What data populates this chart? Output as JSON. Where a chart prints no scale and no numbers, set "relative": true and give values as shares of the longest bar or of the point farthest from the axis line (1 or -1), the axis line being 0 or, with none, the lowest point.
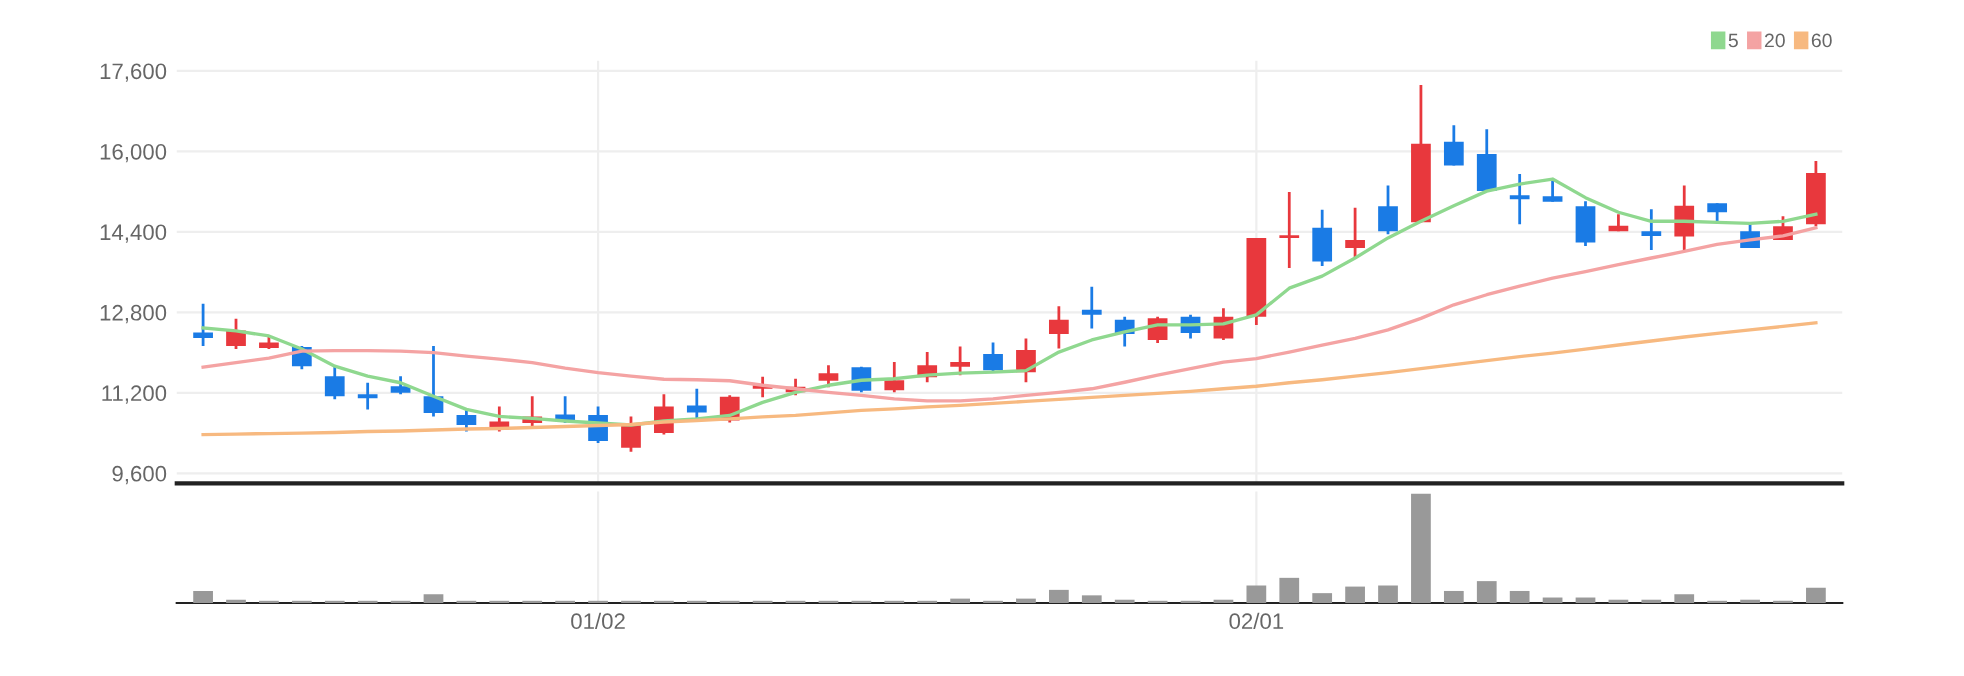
{
  "chart_data": [
    {
      "type": "candlestick",
      "ohlc": [
        [
          12400,
          12970,
          12130,
          12290
        ],
        [
          12130,
          12670,
          12070,
          12440
        ],
        [
          12090,
          12330,
          12070,
          12200
        ],
        [
          12110,
          12130,
          11670,
          11730
        ],
        [
          11530,
          11730,
          11070,
          11130
        ],
        [
          11170,
          11400,
          10870,
          11090
        ],
        [
          11330,
          11530,
          11170,
          11200
        ],
        [
          11130,
          12130,
          10730,
          10800
        ],
        [
          10760,
          10870,
          10430,
          10560
        ],
        [
          10470,
          10930,
          10430,
          10630
        ],
        [
          10600,
          11130,
          10530,
          10730
        ],
        [
          10770,
          11130,
          10600,
          10640
        ],
        [
          10760,
          10930,
          10200,
          10240
        ],
        [
          10110,
          10730,
          10030,
          10560
        ],
        [
          10400,
          11170,
          10370,
          10930
        ],
        [
          10950,
          11280,
          10650,
          10810
        ],
        [
          10650,
          11150,
          10610,
          11120
        ],
        [
          11280,
          11520,
          11110,
          11350
        ],
        [
          11210,
          11480,
          11150,
          11320
        ],
        [
          11440,
          11750,
          11310,
          11590
        ],
        [
          11710,
          11720,
          11210,
          11240
        ],
        [
          11250,
          11810,
          11210,
          11450
        ],
        [
          11510,
          12010,
          11410,
          11750
        ],
        [
          11720,
          12120,
          11550,
          11810
        ],
        [
          11970,
          12200,
          11610,
          11650
        ],
        [
          11610,
          12280,
          11410,
          12050
        ],
        [
          12370,
          12920,
          12080,
          12650
        ],
        [
          12850,
          13310,
          12480,
          12750
        ],
        [
          12650,
          12710,
          12120,
          12370
        ],
        [
          12250,
          12710,
          12190,
          12680
        ],
        [
          12710,
          12750,
          12280,
          12390
        ],
        [
          12280,
          12880,
          12250,
          12710
        ],
        [
          12710,
          14280,
          12550,
          14280
        ],
        [
          14280,
          15190,
          13680,
          14330
        ],
        [
          14480,
          14840,
          13720,
          13810
        ],
        [
          14080,
          14880,
          13880,
          14240
        ],
        [
          14910,
          15320,
          14350,
          14410
        ],
        [
          14590,
          17320,
          14590,
          16150
        ],
        [
          16190,
          16520,
          15720,
          15720
        ],
        [
          15950,
          16440,
          15210,
          15210
        ],
        [
          15130,
          15550,
          14550,
          15050
        ],
        [
          15110,
          15410,
          15000,
          15000
        ],
        [
          14910,
          15010,
          14120,
          14190
        ],
        [
          14410,
          14750,
          14410,
          14520
        ],
        [
          14410,
          14850,
          14040,
          14320
        ],
        [
          14310,
          15320,
          14010,
          14920
        ],
        [
          14970,
          14970,
          14610,
          14790
        ],
        [
          14410,
          14570,
          14080,
          14080
        ],
        [
          14240,
          14710,
          14240,
          14510
        ],
        [
          14550,
          15810,
          14510,
          15570
        ]
      ],
      "colors": [
        "#1a7be5",
        "#e8383d",
        "#e8383d",
        "#1a7be5",
        "#1a7be5",
        "#1a7be5",
        "#1a7be5",
        "#1a7be5",
        "#1a7be5",
        "#e8383d",
        "#e8383d",
        "#1a7be5",
        "#1a7be5",
        "#e8383d",
        "#e8383d",
        "#1a7be5",
        "#e8383d",
        "#e8383d",
        "#e8383d",
        "#e8383d",
        "#1a7be5",
        "#e8383d",
        "#e8383d",
        "#e8383d",
        "#1a7be5",
        "#e8383d",
        "#e8383d",
        "#1a7be5",
        "#1a7be5",
        "#e8383d",
        "#1a7be5",
        "#e8383d",
        "#e8383d",
        "#e8383d",
        "#1a7be5",
        "#e8383d",
        "#1a7be5",
        "#e8383d",
        "#1a7be5",
        "#1a7be5",
        "#1a7be5",
        "#1a7be5",
        "#1a7be5",
        "#e8383d",
        "#1a7be5",
        "#e8383d",
        "#1a7be5",
        "#1a7be5",
        "#e8383d",
        "#e8383d"
      ],
      "series": [
        {
          "type": "line",
          "name": "5",
          "color": "#8fd88f",
          "values": [
            12490,
            12430,
            12330,
            12070,
            11730,
            11530,
            11400,
            11130,
            10870,
            10730,
            10690,
            10640,
            10600,
            10560,
            10640,
            10680,
            10750,
            11010,
            11210,
            11350,
            11450,
            11480,
            11550,
            11590,
            11610,
            11640,
            12010,
            12250,
            12410,
            12550,
            12550,
            12570,
            12750,
            13280,
            13520,
            13880,
            14280,
            14610,
            14920,
            15210,
            15350,
            15450,
            15080,
            14790,
            14610,
            14610,
            14590,
            14570,
            14610,
            14750
          ]
        },
        {
          "type": "line",
          "name": "20",
          "color": "#f4a3a3",
          "values": [
            11710,
            11800,
            11890,
            12030,
            12040,
            12040,
            12030,
            12000,
            11930,
            11870,
            11800,
            11690,
            11600,
            11530,
            11470,
            11460,
            11440,
            11350,
            11280,
            11210,
            11150,
            11080,
            11040,
            11040,
            11080,
            11150,
            11210,
            11280,
            11410,
            11550,
            11680,
            11810,
            11880,
            12010,
            12150,
            12280,
            12450,
            12680,
            12950,
            13150,
            13320,
            13480,
            13610,
            13750,
            13880,
            14010,
            14150,
            14240,
            14320,
            14480
          ]
        },
        {
          "type": "line",
          "name": "60",
          "color": "#f7b980",
          "values": [
            10370,
            10380,
            10390,
            10400,
            10410,
            10430,
            10440,
            10460,
            10480,
            10490,
            10510,
            10530,
            10550,
            10570,
            10620,
            10650,
            10680,
            10720,
            10750,
            10800,
            10850,
            10880,
            10920,
            10950,
            10990,
            11030,
            11070,
            11110,
            11150,
            11190,
            11230,
            11280,
            11330,
            11400,
            11460,
            11530,
            11600,
            11680,
            11760,
            11840,
            11920,
            11990,
            12070,
            12150,
            12230,
            12310,
            12380,
            12450,
            12520,
            12590
          ]
        }
      ],
      "ylim": [
        9400,
        17800
      ],
      "yticks": [
        {
          "value": 9600,
          "label": "9,600"
        },
        {
          "value": 11200,
          "label": "11,200"
        },
        {
          "value": 12800,
          "label": "12,800"
        },
        {
          "value": 14400,
          "label": "14,400"
        },
        {
          "value": 16000,
          "label": "16,000"
        },
        {
          "value": 17600,
          "label": "17,600"
        }
      ],
      "grid": true,
      "legend": "top right",
      "tick_labels": "y"
    },
    {
      "type": "bar",
      "relative": true,
      "color": "#999999",
      "categories": [
        null,
        null,
        null,
        null,
        null,
        null,
        null,
        null,
        null,
        null,
        null,
        null,
        "01/02",
        null,
        null,
        null,
        null,
        null,
        null,
        null,
        null,
        null,
        null,
        null,
        null,
        null,
        null,
        null,
        null,
        null,
        null,
        null,
        "02/01",
        null,
        null,
        null,
        null,
        null,
        null,
        null,
        null,
        null,
        null,
        null,
        null,
        null,
        null,
        null,
        null,
        null
      ],
      "values": [
        0.11,
        0.03,
        0.02,
        0.02,
        0.02,
        0.02,
        0.02,
        0.08,
        0.02,
        0.02,
        0.02,
        0.02,
        0.02,
        0.02,
        0.02,
        0.02,
        0.02,
        0.02,
        0.02,
        0.02,
        0.02,
        0.02,
        0.02,
        0.04,
        0.02,
        0.04,
        0.12,
        0.07,
        0.03,
        0.02,
        0.02,
        0.03,
        0.16,
        0.23,
        0.09,
        0.15,
        0.16,
        1,
        0.11,
        0.2,
        0.11,
        0.05,
        0.05,
        0.03,
        0.03,
        0.08,
        0.02,
        0.03,
        0.02,
        0.14
      ],
      "grid": "x",
      "tick_labels": "x"
    }
  ]
}
